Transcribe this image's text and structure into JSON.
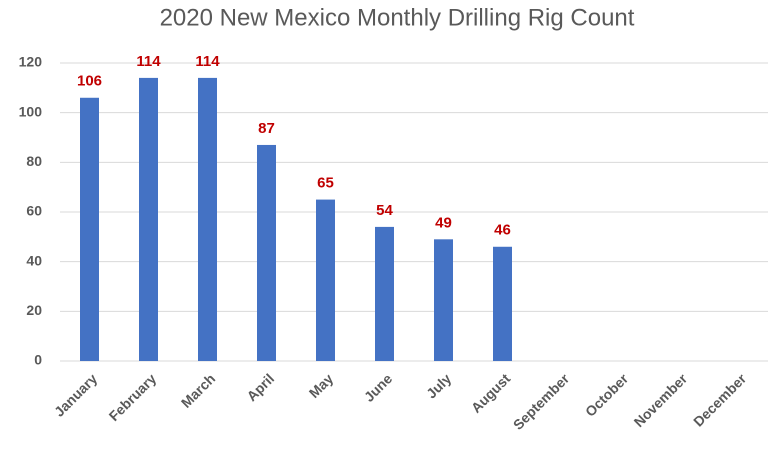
{
  "chart_data": {
    "type": "bar",
    "title": "2020 New Mexico Monthly Drilling Rig Count",
    "categories": [
      "January",
      "February",
      "March",
      "April",
      "May",
      "June",
      "July",
      "August",
      "September",
      "October",
      "November",
      "December"
    ],
    "values": [
      106,
      114,
      114,
      87,
      65,
      54,
      49,
      46,
      null,
      null,
      null,
      null
    ],
    "color": "#4472c4",
    "label_color": "#c00000",
    "ylim": [
      0,
      120
    ],
    "yticks": [
      0,
      20,
      40,
      60,
      80,
      100,
      120
    ],
    "grid": true
  }
}
